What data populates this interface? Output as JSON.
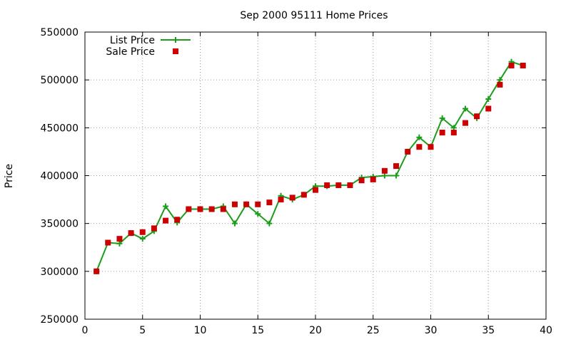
{
  "chart_data": {
    "type": "line",
    "title": "Sep 2000 95111 Home Prices",
    "xlabel": "",
    "ylabel": "Price",
    "xlim": [
      0,
      40
    ],
    "ylim": [
      250000,
      550000
    ],
    "xticks": [
      0,
      5,
      10,
      15,
      20,
      25,
      30,
      35,
      40
    ],
    "yticks": [
      250000,
      300000,
      350000,
      400000,
      450000,
      500000,
      550000
    ],
    "grid": true,
    "legend_position": "top-left",
    "series": [
      {
        "name": "List Price",
        "style": "line-plus",
        "color": "#1a9e1a",
        "x": [
          1,
          2,
          3,
          4,
          5,
          6,
          7,
          8,
          9,
          10,
          11,
          12,
          13,
          14,
          15,
          16,
          17,
          18,
          19,
          20,
          21,
          22,
          23,
          24,
          25,
          26,
          27,
          28,
          29,
          30,
          31,
          32,
          33,
          34,
          35,
          36,
          37,
          38
        ],
        "values": [
          300000,
          330000,
          329000,
          340000,
          334000,
          342000,
          368000,
          351000,
          365000,
          365000,
          365000,
          368000,
          350000,
          370000,
          360000,
          350000,
          379000,
          375000,
          380000,
          389000,
          389000,
          390000,
          390000,
          398000,
          399000,
          400000,
          400000,
          425000,
          440000,
          430000,
          460000,
          450000,
          470000,
          460000,
          480000,
          500000,
          519000,
          515000
        ]
      },
      {
        "name": "Sale Price",
        "style": "square",
        "color": "#cc0000",
        "x": [
          1,
          2,
          3,
          4,
          5,
          6,
          7,
          8,
          9,
          10,
          11,
          12,
          13,
          14,
          15,
          16,
          17,
          18,
          19,
          20,
          21,
          22,
          23,
          24,
          25,
          26,
          27,
          28,
          29,
          30,
          31,
          32,
          33,
          34,
          35,
          36,
          37,
          38
        ],
        "values": [
          300000,
          330000,
          334000,
          340000,
          341000,
          345000,
          353000,
          354000,
          365000,
          365000,
          365000,
          365000,
          370000,
          370000,
          370000,
          372000,
          375000,
          377000,
          380000,
          385000,
          390000,
          390000,
          390000,
          395000,
          396000,
          405000,
          410000,
          425000,
          430000,
          430000,
          445000,
          445000,
          455000,
          462000,
          470000,
          495000,
          515000,
          515000
        ]
      }
    ]
  }
}
